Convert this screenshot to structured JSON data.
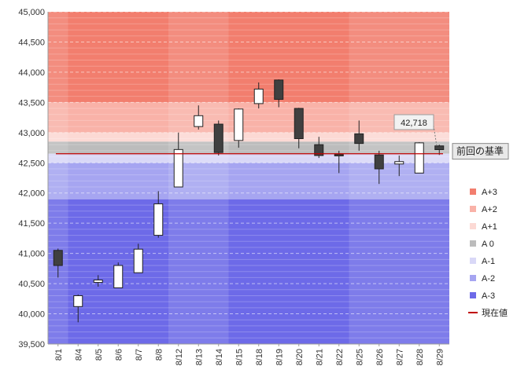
{
  "chart_data": {
    "type": "candlestick",
    "y_axis": {
      "min": 39500,
      "max": 45000,
      "major_step": 500,
      "tick_labels": [
        "45,000",
        "44,500",
        "44,000",
        "43,500",
        "43,000",
        "42,500",
        "42,000",
        "41,500",
        "41,000",
        "40,500",
        "40,000",
        "39,500"
      ]
    },
    "categories": [
      "8/1",
      "8/4",
      "8/5",
      "8/6",
      "8/7",
      "8/8",
      "8/12",
      "8/13",
      "8/14",
      "8/15",
      "8/18",
      "8/19",
      "8/20",
      "8/21",
      "8/22",
      "8/25",
      "8/26",
      "8/27",
      "8/28",
      "8/29"
    ],
    "candles": [
      {
        "date": "8/1",
        "open": 41050,
        "high": 41080,
        "low": 40600,
        "close": 40800
      },
      {
        "date": "8/4",
        "open": 40120,
        "high": 40320,
        "low": 39860,
        "close": 40300
      },
      {
        "date": "8/5",
        "open": 40520,
        "high": 40640,
        "low": 40450,
        "close": 40560
      },
      {
        "date": "8/6",
        "open": 40430,
        "high": 40850,
        "low": 40430,
        "close": 40800
      },
      {
        "date": "8/7",
        "open": 40680,
        "high": 41160,
        "low": 40680,
        "close": 41070
      },
      {
        "date": "8/8",
        "open": 41300,
        "high": 42030,
        "low": 41260,
        "close": 41820
      },
      {
        "date": "8/12",
        "open": 42100,
        "high": 43000,
        "low": 42100,
        "close": 42720
      },
      {
        "date": "8/13",
        "open": 43100,
        "high": 43450,
        "low": 43050,
        "close": 43280
      },
      {
        "date": "8/14",
        "open": 43140,
        "high": 43200,
        "low": 42620,
        "close": 42670
      },
      {
        "date": "8/15",
        "open": 42870,
        "high": 43400,
        "low": 42750,
        "close": 43390
      },
      {
        "date": "8/18",
        "open": 43480,
        "high": 43830,
        "low": 43400,
        "close": 43720
      },
      {
        "date": "8/19",
        "open": 43870,
        "high": 43880,
        "low": 43420,
        "close": 43550
      },
      {
        "date": "8/20",
        "open": 43400,
        "high": 43410,
        "low": 42740,
        "close": 42900
      },
      {
        "date": "8/21",
        "open": 42800,
        "high": 42930,
        "low": 42580,
        "close": 42620
      },
      {
        "date": "8/22",
        "open": 42640,
        "high": 42700,
        "low": 42330,
        "close": 42620
      },
      {
        "date": "8/25",
        "open": 42980,
        "high": 43200,
        "low": 42700,
        "close": 42820
      },
      {
        "date": "8/26",
        "open": 42630,
        "high": 42700,
        "low": 42150,
        "close": 42400
      },
      {
        "date": "8/27",
        "open": 42480,
        "high": 42620,
        "low": 42280,
        "close": 42520
      },
      {
        "date": "8/28",
        "open": 42330,
        "high": 42840,
        "low": 42330,
        "close": 42830
      },
      {
        "date": "8/29",
        "open": 42780,
        "high": 42800,
        "low": 42630,
        "close": 42718
      }
    ],
    "bands": [
      {
        "name": "A+3",
        "from": 43500,
        "to": 45000,
        "color": "#f27e6e"
      },
      {
        "name": "A+2",
        "from": 43000,
        "to": 43500,
        "color": "#f9b2a8"
      },
      {
        "name": "A+1",
        "from": 42850,
        "to": 43000,
        "color": "#fcd9d4"
      },
      {
        "name": "A 0",
        "from": 42650,
        "to": 42850,
        "color": "#bcbcbc"
      },
      {
        "name": "A-1",
        "from": 42500,
        "to": 42650,
        "color": "#d9d8f7"
      },
      {
        "name": "A-2",
        "from": 41900,
        "to": 42500,
        "color": "#a6a5f1"
      },
      {
        "name": "A-3",
        "from": 39500,
        "to": 41900,
        "color": "#6d6ae8"
      }
    ],
    "current_value": 42650,
    "current_value_color": "#c00000",
    "last_price_label": "42,718",
    "reference_label": "前回の基準",
    "legend": [
      {
        "label": "A+3",
        "color": "#f27e6e",
        "kind": "box"
      },
      {
        "label": "A+2",
        "color": "#f9b2a8",
        "kind": "box"
      },
      {
        "label": "A+1",
        "color": "#fcd9d4",
        "kind": "box"
      },
      {
        "label": "A 0",
        "color": "#bcbcbc",
        "kind": "box"
      },
      {
        "label": "A-1",
        "color": "#d9d8f7",
        "kind": "box"
      },
      {
        "label": "A-2",
        "color": "#a6a5f1",
        "kind": "box"
      },
      {
        "label": "A-3",
        "color": "#6d6ae8",
        "kind": "box"
      },
      {
        "label": "現在値",
        "color": "#c00000",
        "kind": "line"
      }
    ],
    "legend_position": "right"
  }
}
